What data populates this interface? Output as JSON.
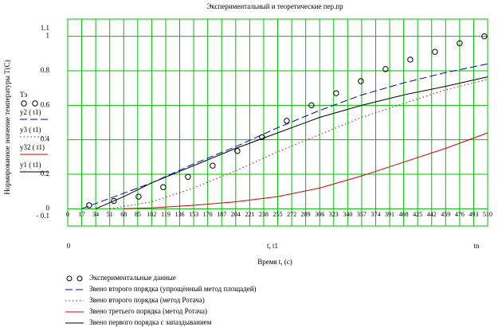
{
  "chart_data": {
    "type": "line",
    "title": "Экспериментальный и теоретические пер.пр",
    "x_label": "Время t, (c)",
    "y_label": "Нормированное значение температуры T(C)",
    "x_axis_markers": [
      "0",
      "t, t1",
      "tn"
    ],
    "xlim": [
      0,
      510
    ],
    "ylim": [
      -0.1,
      1.1
    ],
    "xticks": [
      0,
      17,
      34,
      51,
      68,
      85,
      102,
      119,
      136,
      153,
      170,
      187,
      204,
      221,
      238,
      255,
      272,
      289,
      306,
      323,
      340,
      357,
      374,
      391,
      408,
      425,
      442,
      459,
      476,
      493,
      510
    ],
    "yticks": [
      {
        "value": -0.1,
        "label": "- 0.1"
      },
      0,
      0.2,
      0.4,
      0.6,
      0.8,
      1,
      1.1
    ],
    "grid": true,
    "grid_color": "#00c000",
    "series": [
      {
        "name": "Экспериментальные данные",
        "trace": "Тэ",
        "style": "circles",
        "color": "#000000",
        "x": [
          26,
          56,
          86,
          116,
          146,
          176,
          206,
          236,
          266,
          296,
          326,
          356,
          386,
          416,
          446,
          476,
          506
        ],
        "values": [
          0.02,
          0.045,
          0.07,
          0.125,
          0.185,
          0.25,
          0.335,
          0.415,
          0.51,
          0.6,
          0.67,
          0.74,
          0.81,
          0.865,
          0.91,
          0.96,
          1.0
        ]
      },
      {
        "name": "Звено второго порядка (упрощённый метод площадей)",
        "trace": "y2 ( t1)",
        "style": "dashed",
        "color": "#0000c0",
        "x": [
          17,
          51,
          102,
          153,
          204,
          255,
          306,
          357,
          408,
          459,
          510
        ],
        "values": [
          0,
          0.06,
          0.15,
          0.26,
          0.36,
          0.47,
          0.57,
          0.66,
          0.73,
          0.79,
          0.84
        ]
      },
      {
        "name": "Звено второго порядка (метод Ротача)",
        "trace": "y3 ( t1)",
        "style": "dotted",
        "color": "#c00000",
        "x": [
          51,
          102,
          153,
          204,
          255,
          306,
          357,
          408,
          459,
          510
        ],
        "values": [
          0,
          0.04,
          0.12,
          0.22,
          0.33,
          0.43,
          0.53,
          0.61,
          0.69,
          0.75
        ]
      },
      {
        "name": "Звено третьего порядка (метод Ротача)",
        "trace": "y32 ( t1)",
        "style": "solid",
        "color": "#d00000",
        "x": [
          68,
          102,
          153,
          204,
          255,
          306,
          357,
          408,
          459,
          510
        ],
        "values": [
          0,
          0.005,
          0.02,
          0.04,
          0.07,
          0.12,
          0.19,
          0.27,
          0.35,
          0.44
        ]
      },
      {
        "name": "Звено первого порядка с запаздыванием",
        "trace": "y1 ( t1)",
        "style": "solid",
        "color": "#000000",
        "x": [
          34,
          68,
          102,
          153,
          204,
          255,
          306,
          357,
          408,
          459,
          510
        ],
        "values": [
          0,
          0.07,
          0.15,
          0.25,
          0.35,
          0.44,
          0.53,
          0.6,
          0.66,
          0.71,
          0.765
        ]
      }
    ]
  }
}
